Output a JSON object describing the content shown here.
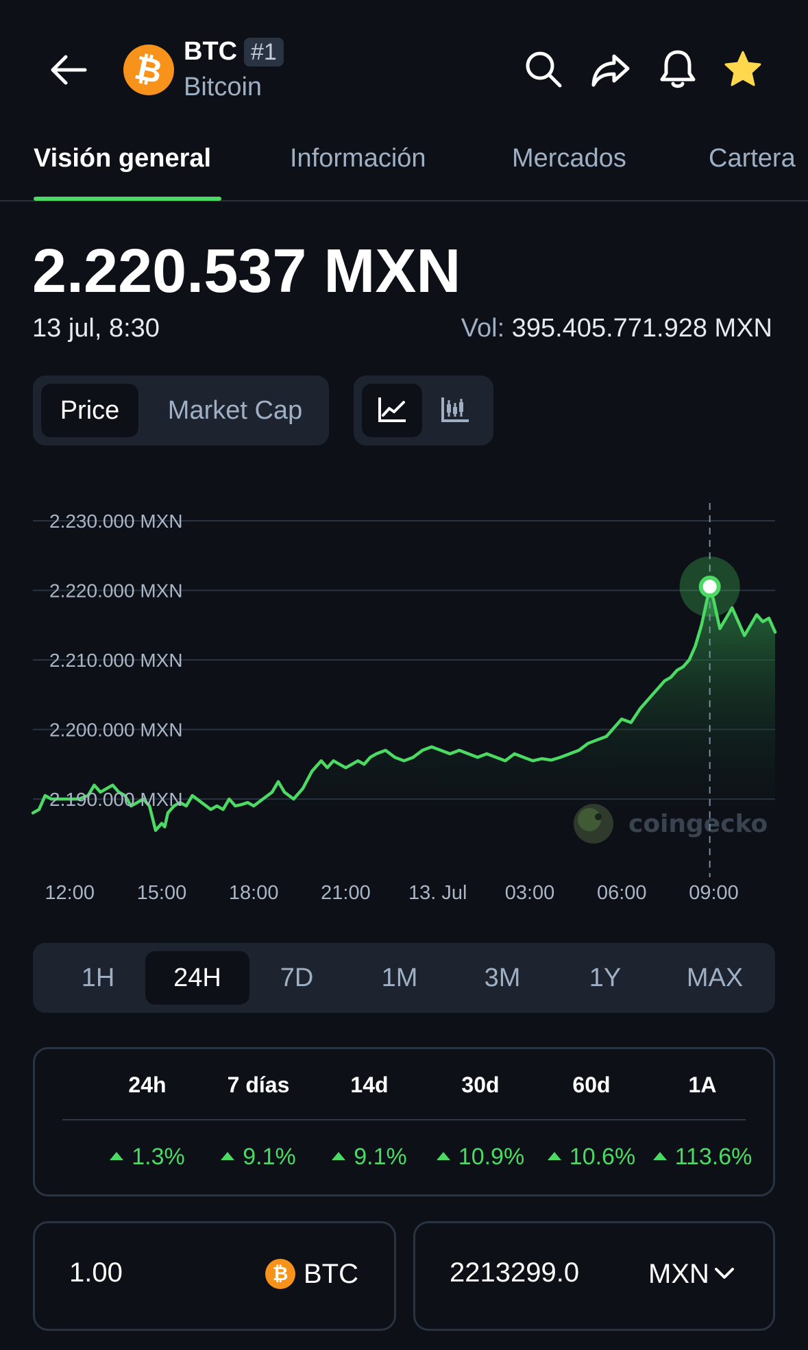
{
  "header": {
    "symbol": "BTC",
    "rank": "#1",
    "name": "Bitcoin",
    "icons": [
      "back-arrow-icon",
      "bitcoin-logo-icon",
      "search-icon",
      "share-icon",
      "bell-icon",
      "star-icon"
    ],
    "coin_glyph": "₿"
  },
  "tabs": [
    {
      "label": "Visión general",
      "active": true
    },
    {
      "label": "Información",
      "active": false
    },
    {
      "label": "Mercados",
      "active": false
    },
    {
      "label": "Cartera",
      "active": false
    }
  ],
  "price": {
    "value": "2.220.537 MXN",
    "date": "13 jul, 8:30",
    "vol_label": "Vol:",
    "vol_value": "395.405.771.928 MXN"
  },
  "toggles": {
    "price": "Price",
    "market_cap": "Market Cap",
    "line_icon": "line-chart-icon",
    "candle_icon": "candlestick-chart-icon"
  },
  "chart_data": {
    "type": "area",
    "title": "",
    "xlabel": "",
    "ylabel": "",
    "y_ticks": [
      "2.230.000 MXN",
      "2.220.000 MXN",
      "2.210.000 MXN",
      "2.200.000 MXN",
      "2.190.000 MXN"
    ],
    "y_tick_values": [
      2230000,
      2220000,
      2210000,
      2200000,
      2190000
    ],
    "x_ticks": [
      "12:00",
      "15:00",
      "18:00",
      "21:00",
      "13. Jul",
      "03:00",
      "06:00",
      "09:00"
    ],
    "x_tick_hours": [
      0,
      3,
      6,
      9,
      12,
      15,
      18,
      21
    ],
    "x_range_hours": [
      -1.2,
      23.0
    ],
    "ylim": [
      2184000,
      2233000
    ],
    "highlight": {
      "hour": 20.87,
      "value": 2220537
    },
    "watermark": "coingecko",
    "line_color": "#4cd964",
    "series": [
      {
        "hours": [
          -1.2,
          -1.0,
          -0.8,
          -0.6,
          -0.3,
          0.0,
          0.3,
          0.6,
          0.8,
          1.0,
          1.2,
          1.4,
          1.6,
          1.8,
          2.0,
          2.2,
          2.4,
          2.6,
          2.8,
          3.0,
          3.1,
          3.2,
          3.4,
          3.6,
          3.8,
          4.0,
          4.3,
          4.6,
          4.8,
          5.0,
          5.2,
          5.4,
          5.6,
          5.8,
          6.0,
          6.3,
          6.6,
          6.8,
          7.0,
          7.3,
          7.6,
          7.9,
          8.2,
          8.4,
          8.6,
          8.8,
          9.0,
          9.2,
          9.4,
          9.6,
          9.8,
          10.0,
          10.3,
          10.6,
          10.9,
          11.2,
          11.5,
          11.8,
          12.1,
          12.4,
          12.7,
          13.0,
          13.3,
          13.6,
          13.9,
          14.2,
          14.5,
          14.8,
          15.1,
          15.4,
          15.7,
          16.0,
          16.3,
          16.6,
          16.9,
          17.2,
          17.5,
          17.8,
          18.0,
          18.3,
          18.6,
          18.9,
          19.2,
          19.4,
          19.6,
          19.8,
          20.0,
          20.2,
          20.4,
          20.6,
          20.8,
          20.87,
          21.0,
          21.2,
          21.4,
          21.6,
          21.8,
          22.0,
          22.2,
          22.4,
          22.6,
          22.8,
          23.0
        ],
        "values": [
          2188000,
          2188500,
          2190500,
          2190000,
          2190000,
          2190000,
          2190000,
          2190500,
          2192000,
          2191000,
          2191500,
          2192000,
          2191000,
          2190500,
          2189000,
          2189500,
          2190000,
          2189000,
          2185500,
          2186500,
          2186000,
          2188000,
          2189000,
          2189500,
          2189000,
          2190500,
          2189500,
          2188500,
          2189000,
          2188500,
          2190000,
          2189000,
          2189200,
          2189500,
          2189000,
          2190000,
          2191000,
          2192500,
          2191000,
          2190000,
          2191500,
          2194000,
          2195500,
          2194500,
          2195500,
          2195000,
          2194500,
          2195000,
          2195500,
          2195000,
          2196000,
          2196500,
          2197000,
          2196000,
          2195500,
          2196000,
          2197000,
          2197500,
          2197000,
          2196500,
          2197000,
          2196500,
          2196000,
          2196500,
          2196000,
          2195500,
          2196500,
          2196000,
          2195500,
          2195800,
          2195600,
          2196000,
          2196500,
          2197000,
          2198000,
          2198500,
          2199000,
          2200500,
          2201500,
          2201000,
          2203000,
          2204500,
          2206000,
          2207000,
          2207500,
          2208500,
          2209000,
          2210000,
          2212000,
          2215000,
          2219000,
          2220537,
          2218500,
          2214500,
          2216000,
          2217500,
          2215500,
          2213500,
          2215000,
          2216500,
          2215500,
          2216000,
          2214000
        ]
      }
    ]
  },
  "ranges": [
    {
      "label": "1H",
      "selected": false
    },
    {
      "label": "24H",
      "selected": true
    },
    {
      "label": "7D",
      "selected": false
    },
    {
      "label": "1M",
      "selected": false
    },
    {
      "label": "3M",
      "selected": false
    },
    {
      "label": "1Y",
      "selected": false
    },
    {
      "label": "MAX",
      "selected": false
    }
  ],
  "performance": {
    "periods": [
      "24h",
      "7 días",
      "14d",
      "30d",
      "60d",
      "1A"
    ],
    "values": [
      "1.3%",
      "9.1%",
      "9.1%",
      "10.9%",
      "10.6%",
      "113.6%"
    ],
    "up_color": "#4cd964"
  },
  "converter": {
    "from_value": "1.00",
    "from_currency": "BTC",
    "to_value": "2213299.0",
    "to_currency": "MXN",
    "dropdown_icon": "chevron-down-icon"
  }
}
